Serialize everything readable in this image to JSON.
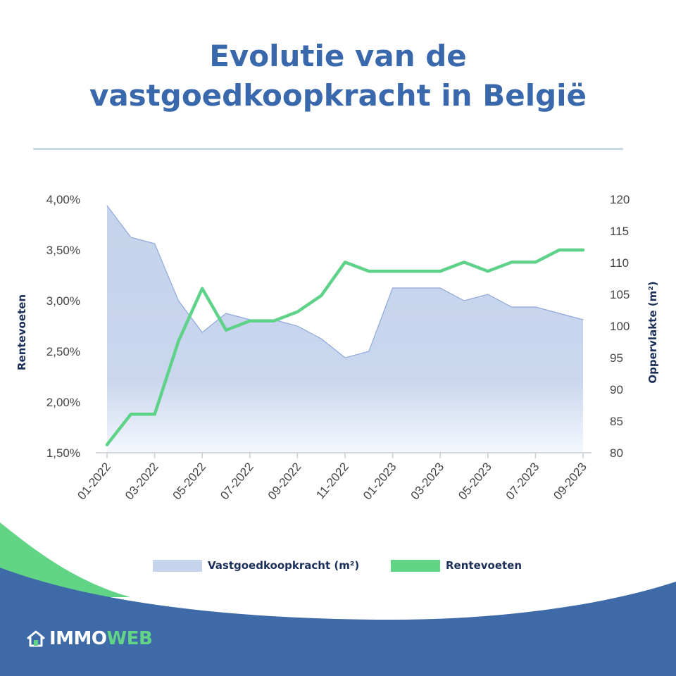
{
  "header": {
    "title_line1": "Evolutie van de",
    "title_line2": "vastgoedkoopkracht in België"
  },
  "colors": {
    "title": "#3a68ad",
    "area_fill": "#c5d3ec",
    "area_stroke": "#8fa8da",
    "line": "#5fd28a",
    "footer_blue": "#3f6aa8",
    "footer_green": "#62d486",
    "axis_title": "#1c2f58"
  },
  "chart_data": {
    "type": "line",
    "title": "Evolutie van de vastgoedkoopkracht in België",
    "x_labels": [
      "01-2022",
      "03-2022",
      "05-2022",
      "07-2022",
      "09-2022",
      "11-2022",
      "01-2023",
      "03-2023",
      "05-2023",
      "07-2023",
      "09-2023"
    ],
    "x_label_index": [
      0,
      2,
      4,
      6,
      8,
      10,
      12,
      14,
      16,
      18,
      20
    ],
    "n_points": 21,
    "y_left": {
      "label": "Rentevoeten",
      "ticks": [
        "1,50%",
        "2,00%",
        "2,50%",
        "3,00%",
        "3,50%",
        "4,00%"
      ],
      "range": [
        1.5,
        4.0
      ]
    },
    "y_right": {
      "label": "Oppervlakte (m²)",
      "ticks": [
        "80",
        "85",
        "90",
        "95",
        "100",
        "105",
        "110",
        "115",
        "120"
      ],
      "range": [
        80,
        120
      ]
    },
    "series": [
      {
        "name": "Vastgoedkoopkracht (m²)",
        "type": "area",
        "axis": "right",
        "values": [
          119,
          114,
          113,
          104,
          99,
          102,
          101,
          101,
          100,
          98,
          95,
          96,
          106,
          106,
          106,
          104,
          105,
          103,
          103,
          102,
          101
        ]
      },
      {
        "name": "Rentevoeten",
        "type": "line",
        "axis": "left",
        "values": [
          1.58,
          1.88,
          1.88,
          2.6,
          3.12,
          2.71,
          2.8,
          2.8,
          2.89,
          3.05,
          3.38,
          3.29,
          3.29,
          3.29,
          3.29,
          3.38,
          3.29,
          3.38,
          3.38,
          3.5,
          3.5
        ]
      }
    ],
    "legend": [
      "Vastgoedkoopkracht (m²)",
      "Rentevoeten"
    ],
    "legend_position": "bottom",
    "grid": false
  },
  "footer": {
    "logo_part1": "IMMO",
    "logo_part2": "WEB",
    "logo_icon": "house-icon"
  }
}
